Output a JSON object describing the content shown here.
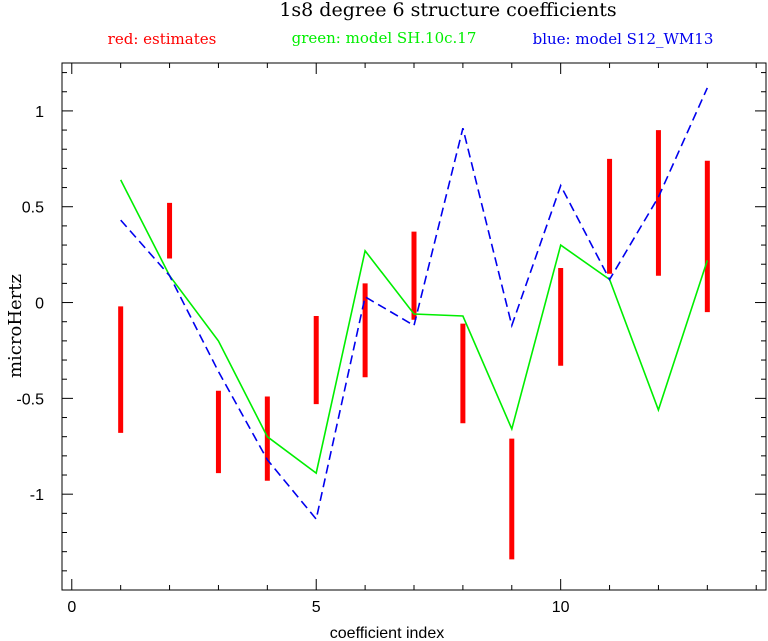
{
  "chart_data": {
    "type": "line",
    "title": "1s8 degree 6 structure coefficients",
    "legend": [
      {
        "label": "red: estimates",
        "color": "#ff0000"
      },
      {
        "label": "green: model SH.10c.17",
        "color": "#00ee00"
      },
      {
        "label": "blue: model S12_WM13",
        "color": "#0000ee"
      }
    ],
    "xlabel": "coefficient index",
    "ylabel": "microHertz",
    "xlim": [
      -0.2,
      14.2
    ],
    "ylim": [
      -1.5,
      1.25
    ],
    "x_ticks": [
      0,
      5,
      10
    ],
    "y_ticks": [
      -1,
      -0.5,
      0,
      0.5,
      1
    ],
    "x_tick_labels": [
      "0",
      "5",
      "10"
    ],
    "y_tick_labels": [
      "-1",
      "-0.5",
      "0",
      "0.5",
      "1"
    ],
    "estimates": [
      {
        "x": 1,
        "low": -0.68,
        "high": -0.02
      },
      {
        "x": 2,
        "low": 0.23,
        "high": 0.52
      },
      {
        "x": 3,
        "low": -0.89,
        "high": -0.46
      },
      {
        "x": 4,
        "low": -0.93,
        "high": -0.49
      },
      {
        "x": 5,
        "low": -0.53,
        "high": -0.07
      },
      {
        "x": 6,
        "low": -0.39,
        "high": 0.1
      },
      {
        "x": 7,
        "low": -0.09,
        "high": 0.37
      },
      {
        "x": 8,
        "low": -0.63,
        "high": -0.11
      },
      {
        "x": 9,
        "low": -1.34,
        "high": -0.71
      },
      {
        "x": 10,
        "low": -0.33,
        "high": 0.18
      },
      {
        "x": 11,
        "low": 0.15,
        "high": 0.75
      },
      {
        "x": 12,
        "low": 0.14,
        "high": 0.9
      },
      {
        "x": 13,
        "low": -0.05,
        "high": 0.74
      }
    ],
    "series": [
      {
        "name": "model SH.10c.17",
        "color": "#00ee00",
        "style": "solid",
        "x": [
          1,
          2,
          3,
          4,
          5,
          6,
          7,
          8,
          9,
          10,
          11,
          12,
          13
        ],
        "values": [
          0.64,
          0.14,
          -0.2,
          -0.7,
          -0.89,
          0.27,
          -0.06,
          -0.07,
          -0.66,
          0.3,
          0.12,
          -0.56,
          0.22
        ]
      },
      {
        "name": "model S12_WM13",
        "color": "#0000ee",
        "style": "dashed",
        "x": [
          1,
          2,
          3,
          4,
          5,
          6,
          7,
          8,
          9,
          10,
          11,
          12,
          13
        ],
        "values": [
          0.43,
          0.14,
          -0.36,
          -0.82,
          -1.13,
          0.03,
          -0.12,
          0.91,
          -0.12,
          0.61,
          0.12,
          0.55,
          1.12
        ]
      }
    ]
  }
}
